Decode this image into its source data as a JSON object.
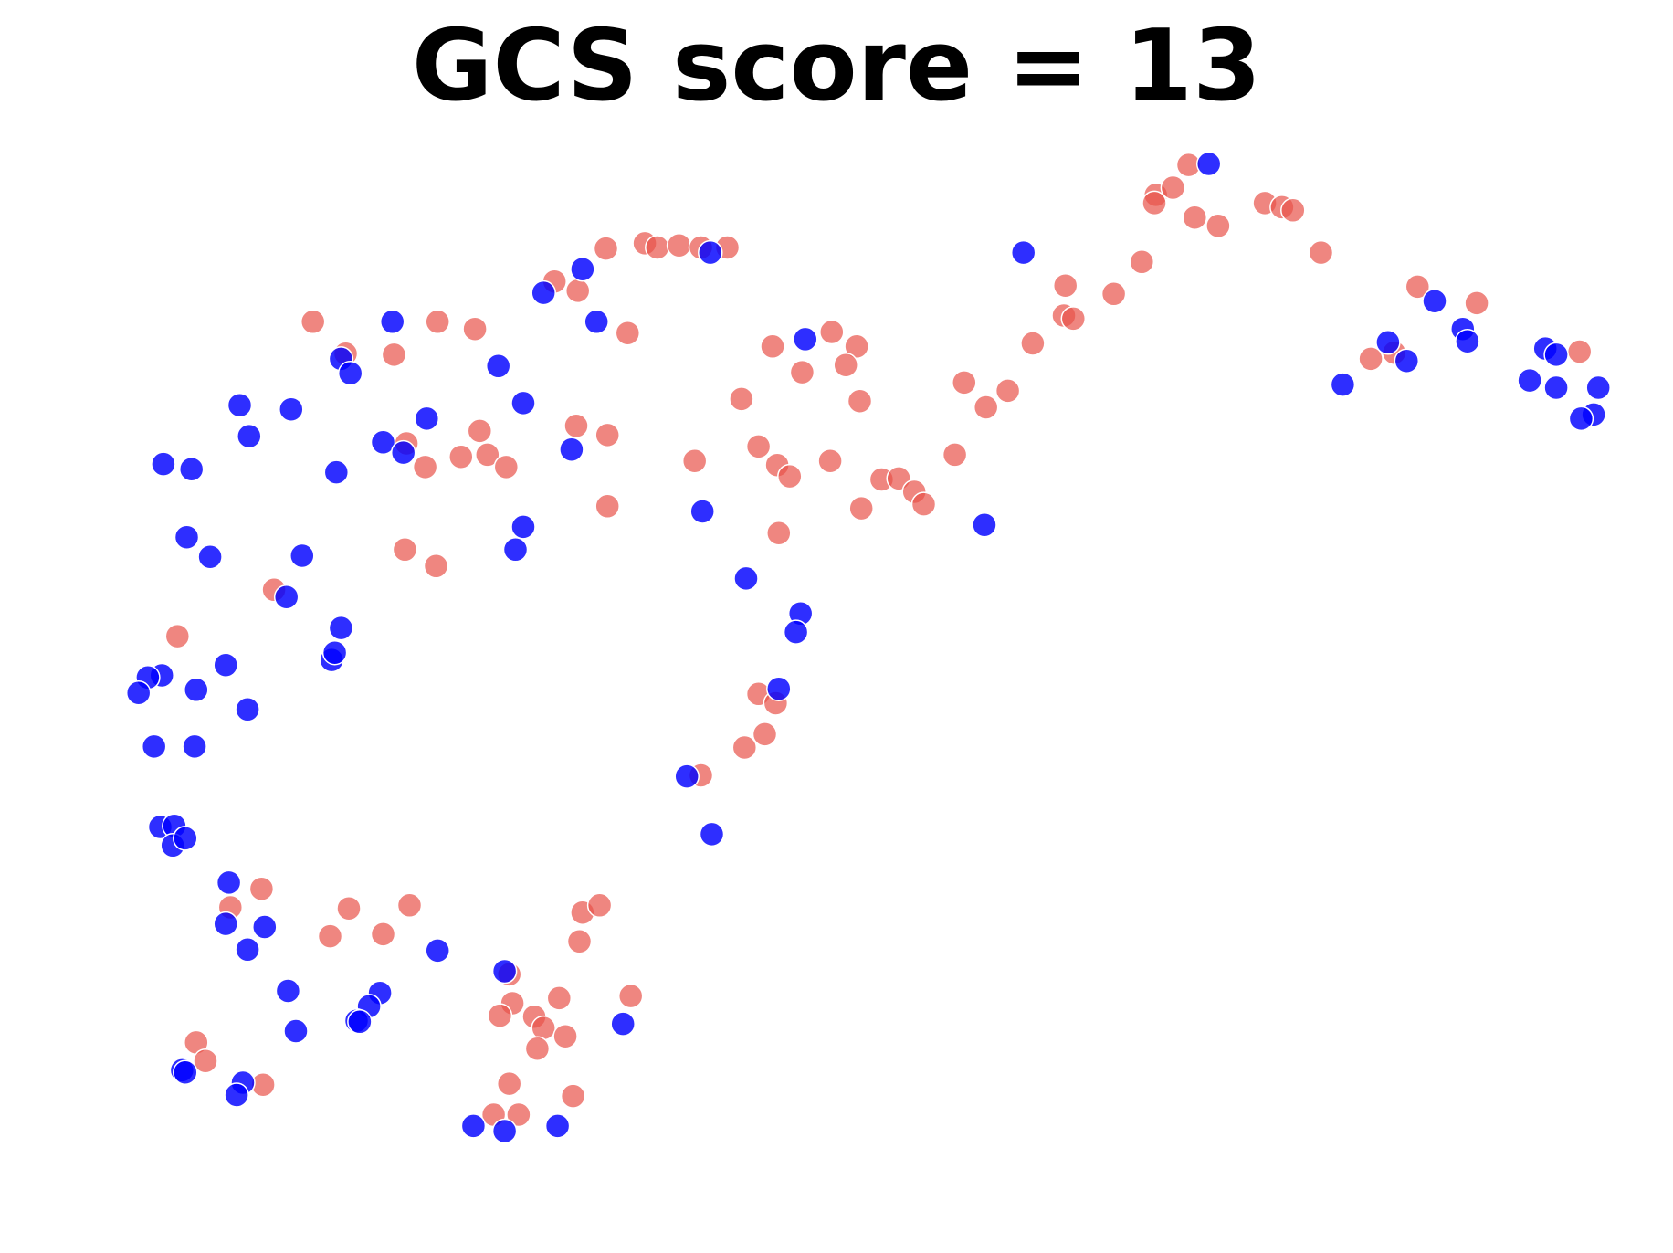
{
  "chart_data": {
    "type": "scatter",
    "title": "GCS score = 13",
    "xlabel": "",
    "ylabel": "",
    "axes_visible": false,
    "grid": false,
    "colors": {
      "blue": "#0000ff",
      "red": "#e8524a"
    },
    "xlim": [
      0,
      100
    ],
    "ylim": [
      0,
      100
    ],
    "series": [
      {
        "color": "#e8524a",
        "points": [
          [
            34.2,
            91.4
          ],
          [
            36.7,
            91.9
          ],
          [
            37.5,
            91.5
          ],
          [
            38.9,
            91.7
          ],
          [
            40.3,
            91.5
          ],
          [
            42.0,
            91.5
          ],
          [
            30.9,
            88.2
          ],
          [
            32.4,
            87.3
          ],
          [
            15.4,
            84.3
          ],
          [
            23.4,
            84.3
          ],
          [
            35.6,
            83.2
          ],
          [
            17.5,
            81.2
          ],
          [
            20.6,
            81.1
          ],
          [
            25.8,
            83.6
          ],
          [
            44.9,
            81.9
          ],
          [
            48.7,
            83.3
          ],
          [
            50.3,
            81.9
          ],
          [
            49.6,
            80.1
          ],
          [
            46.8,
            79.4
          ],
          [
            57.2,
            78.4
          ],
          [
            60.0,
            77.6
          ],
          [
            58.6,
            76.0
          ],
          [
            50.5,
            76.6
          ],
          [
            42.9,
            76.8
          ],
          [
            26.1,
            73.7
          ],
          [
            32.3,
            74.2
          ],
          [
            34.3,
            73.3
          ],
          [
            21.4,
            72.5
          ],
          [
            22.6,
            70.2
          ],
          [
            24.9,
            71.2
          ],
          [
            26.6,
            71.4
          ],
          [
            27.8,
            70.2
          ],
          [
            34.3,
            66.4
          ],
          [
            39.9,
            70.8
          ],
          [
            44.0,
            72.2
          ],
          [
            45.2,
            70.4
          ],
          [
            46.0,
            69.3
          ],
          [
            48.6,
            70.8
          ],
          [
            51.9,
            69.0
          ],
          [
            53.0,
            69.1
          ],
          [
            56.6,
            71.4
          ],
          [
            54.0,
            67.8
          ],
          [
            54.6,
            66.6
          ],
          [
            50.6,
            66.2
          ],
          [
            45.3,
            63.8
          ],
          [
            21.3,
            62.2
          ],
          [
            23.3,
            60.6
          ],
          [
            12.9,
            58.3
          ],
          [
            6.7,
            53.8
          ],
          [
            44.0,
            48.2
          ],
          [
            45.1,
            47.3
          ],
          [
            44.4,
            44.3
          ],
          [
            43.1,
            43.0
          ],
          [
            40.3,
            40.3
          ],
          [
            12.1,
            29.3
          ],
          [
            10.1,
            27.5
          ],
          [
            17.7,
            27.4
          ],
          [
            21.6,
            27.7
          ],
          [
            32.7,
            27.0
          ],
          [
            33.8,
            27.7
          ],
          [
            16.5,
            24.7
          ],
          [
            19.9,
            24.9
          ],
          [
            32.5,
            24.2
          ],
          [
            28.0,
            21.0
          ],
          [
            28.2,
            18.2
          ],
          [
            31.2,
            18.7
          ],
          [
            27.4,
            17.0
          ],
          [
            29.6,
            16.9
          ],
          [
            35.8,
            18.9
          ],
          [
            30.2,
            15.8
          ],
          [
            31.6,
            15.0
          ],
          [
            29.8,
            13.8
          ],
          [
            7.9,
            14.4
          ],
          [
            8.5,
            12.6
          ],
          [
            12.2,
            10.3
          ],
          [
            28.0,
            10.4
          ],
          [
            32.1,
            9.2
          ],
          [
            27.0,
            7.4
          ],
          [
            28.6,
            7.4
          ],
          [
            63.6,
            84.9
          ],
          [
            66.8,
            87.0
          ],
          [
            68.6,
            90.1
          ],
          [
            69.5,
            96.6
          ],
          [
            70.6,
            97.3
          ],
          [
            71.6,
            99.5
          ],
          [
            69.4,
            95.8
          ],
          [
            72.0,
            94.4
          ],
          [
            73.5,
            93.6
          ],
          [
            76.5,
            95.8
          ],
          [
            77.6,
            95.4
          ],
          [
            78.3,
            95.1
          ],
          [
            80.1,
            91.0
          ],
          [
            63.7,
            87.8
          ],
          [
            64.2,
            84.6
          ],
          [
            61.6,
            82.2
          ],
          [
            86.3,
            87.7
          ],
          [
            90.1,
            86.1
          ],
          [
            84.8,
            81.3
          ],
          [
            83.3,
            80.7
          ],
          [
            96.7,
            81.4
          ]
        ]
      },
      {
        "color": "#0000ff",
        "points": [
          [
            72.9,
            99.6
          ],
          [
            61.0,
            91.0
          ],
          [
            40.9,
            91.0
          ],
          [
            32.7,
            89.4
          ],
          [
            30.2,
            87.1
          ],
          [
            20.5,
            84.3
          ],
          [
            33.6,
            84.3
          ],
          [
            47.0,
            82.6
          ],
          [
            17.2,
            80.7
          ],
          [
            17.8,
            79.3
          ],
          [
            27.3,
            80.0
          ],
          [
            28.9,
            76.4
          ],
          [
            10.7,
            76.2
          ],
          [
            14.0,
            75.8
          ],
          [
            11.3,
            73.2
          ],
          [
            22.7,
            74.9
          ],
          [
            19.9,
            72.6
          ],
          [
            21.2,
            71.6
          ],
          [
            32.0,
            71.9
          ],
          [
            5.8,
            70.5
          ],
          [
            7.6,
            70.0
          ],
          [
            16.9,
            69.7
          ],
          [
            40.4,
            65.9
          ],
          [
            58.5,
            64.6
          ],
          [
            7.3,
            63.4
          ],
          [
            28.9,
            64.4
          ],
          [
            8.8,
            61.5
          ],
          [
            14.7,
            61.6
          ],
          [
            28.4,
            62.2
          ],
          [
            13.7,
            57.6
          ],
          [
            43.2,
            59.4
          ],
          [
            46.7,
            56.0
          ],
          [
            46.4,
            54.2
          ],
          [
            17.2,
            54.6
          ],
          [
            16.6,
            51.5
          ],
          [
            16.8,
            52.2
          ],
          [
            9.8,
            51.0
          ],
          [
            5.7,
            50.0
          ],
          [
            4.8,
            49.8
          ],
          [
            4.2,
            48.3
          ],
          [
            7.9,
            48.6
          ],
          [
            11.2,
            46.7
          ],
          [
            45.3,
            48.7
          ],
          [
            5.2,
            43.1
          ],
          [
            7.8,
            43.1
          ],
          [
            39.4,
            40.2
          ],
          [
            41.0,
            34.6
          ],
          [
            5.6,
            35.3
          ],
          [
            6.5,
            35.4
          ],
          [
            6.4,
            33.5
          ],
          [
            7.2,
            34.2
          ],
          [
            10.0,
            29.9
          ],
          [
            9.8,
            25.9
          ],
          [
            12.3,
            25.6
          ],
          [
            11.2,
            23.4
          ],
          [
            23.4,
            23.3
          ],
          [
            27.7,
            21.3
          ],
          [
            13.8,
            19.4
          ],
          [
            19.7,
            19.2
          ],
          [
            19.0,
            17.9
          ],
          [
            18.2,
            16.5
          ],
          [
            18.4,
            16.4
          ],
          [
            35.3,
            16.2
          ],
          [
            14.3,
            15.5
          ],
          [
            7.0,
            11.7
          ],
          [
            7.2,
            11.5
          ],
          [
            10.9,
            10.5
          ],
          [
            10.5,
            9.3
          ],
          [
            25.7,
            6.3
          ],
          [
            27.7,
            5.8
          ],
          [
            31.1,
            6.3
          ],
          [
            87.4,
            86.3
          ],
          [
            84.4,
            82.3
          ],
          [
            85.6,
            80.5
          ],
          [
            89.2,
            83.6
          ],
          [
            81.5,
            78.2
          ],
          [
            94.5,
            81.7
          ],
          [
            95.2,
            81.1
          ],
          [
            93.5,
            78.6
          ],
          [
            95.2,
            77.9
          ],
          [
            97.9,
            77.9
          ],
          [
            97.6,
            75.3
          ],
          [
            96.8,
            74.9
          ],
          [
            89.5,
            82.4
          ]
        ]
      }
    ]
  }
}
